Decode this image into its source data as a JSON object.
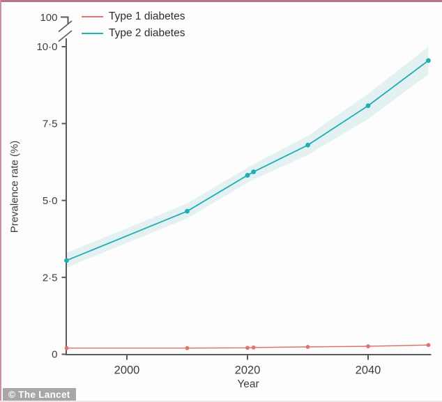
{
  "figure": {
    "watermark": "© The Lancet"
  },
  "colors": {
    "axis": "#595959",
    "tick_text": "#3d3d3d",
    "border_top": "#b5738f",
    "border_left": "#c990a5",
    "border_bottom": "#f3e4e6",
    "type1_line": "#df746c",
    "type2_line": "#1faeb2",
    "type2_band": "#e4f1f2"
  },
  "chart_data": {
    "type": "line",
    "title": "",
    "xlabel": "Year",
    "ylabel": "Prevalence rate (%)",
    "grid": false,
    "legend_position": "top-left",
    "x_range": [
      1990,
      2050
    ],
    "y_range": [
      0,
      10
    ],
    "y_axis_break_label": "100",
    "x_ticks": [
      2000,
      2020,
      2040
    ],
    "y_tick_values": [
      0,
      2.5,
      5,
      7.5,
      10
    ],
    "y_ticks_labels": [
      "0",
      "2·5",
      "5·0",
      "7·5",
      "10·0"
    ],
    "x": [
      1990,
      2010,
      2020,
      2021,
      2030,
      2040,
      2050
    ],
    "series": [
      {
        "name": "Type 1 diabetes",
        "color": "#df746c",
        "values": [
          0.2,
          0.2,
          0.21,
          0.22,
          0.24,
          0.26,
          0.3
        ]
      },
      {
        "name": "Type 2 diabetes",
        "color": "#1faeb2",
        "band_color": "#e4f1f2",
        "values": [
          3.05,
          4.65,
          5.82,
          5.93,
          6.8,
          8.08,
          9.55
        ],
        "band_upper": [
          3.3,
          4.9,
          6.07,
          6.18,
          7.1,
          8.47,
          10.0
        ],
        "band_lower": [
          2.82,
          4.42,
          5.58,
          5.68,
          6.48,
          7.65,
          9.1
        ]
      }
    ]
  }
}
